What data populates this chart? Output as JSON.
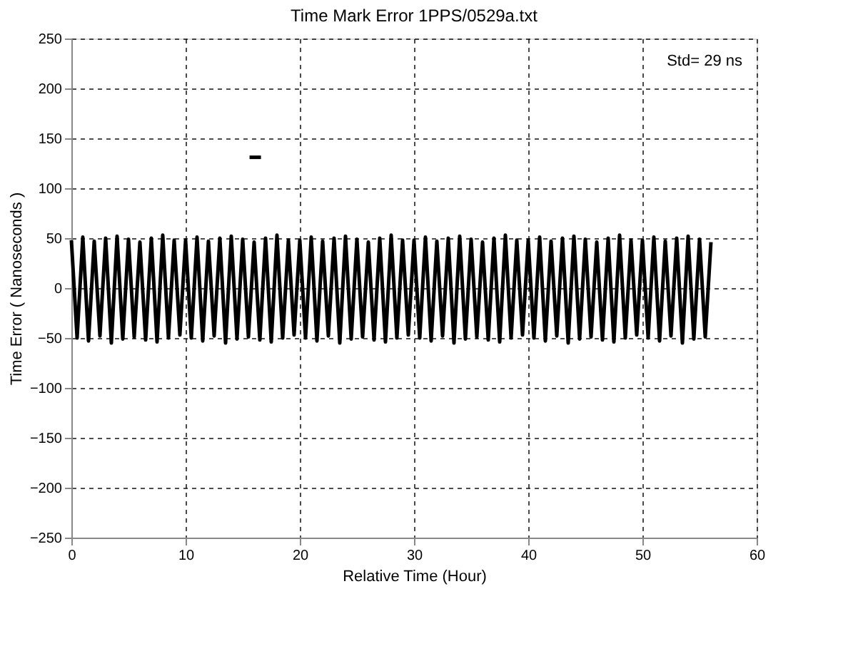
{
  "chart_data": {
    "type": "line",
    "title": "Time Mark Error 1PPS/0529a.txt",
    "xlabel": "Relative Time (Hour)",
    "ylabel": "Time Error ( Nanoseconds )",
    "xlim": [
      0,
      60
    ],
    "xticks": [
      0,
      10,
      20,
      30,
      40,
      50,
      60
    ],
    "ylim": [
      -250,
      250
    ],
    "yticks": [
      -250,
      -200,
      -150,
      -100,
      -50,
      0,
      50,
      100,
      150,
      200,
      250
    ],
    "grid": true,
    "line_style": "solid",
    "annotations": [
      "Std=   29 ns"
    ],
    "series": [
      {
        "color": "#000000",
        "x": [
          0,
          0.5,
          1,
          1.5,
          2,
          2.5,
          3,
          3.5,
          4,
          4.5,
          5,
          5.5,
          6,
          6.5,
          7,
          7.5,
          8,
          8.5,
          9,
          9.5,
          10,
          10.5,
          11,
          11.5,
          12,
          12.5,
          13,
          13.5,
          14,
          14.5,
          15,
          15.5,
          16,
          16.5,
          17,
          17.5,
          18,
          18.5,
          19,
          19.5,
          20,
          20.5,
          21,
          21.5,
          22,
          22.5,
          23,
          23.5,
          24,
          24.5,
          25,
          25.5,
          26,
          26.5,
          27,
          27.5,
          28,
          28.5,
          29,
          29.5,
          30,
          30.5,
          31,
          31.5,
          32,
          32.5,
          33,
          33.5,
          34,
          34.5,
          35,
          35.5,
          36,
          36.5,
          37,
          37.5,
          38,
          38.5,
          39,
          39.5,
          40,
          40.5,
          41,
          41.5,
          42,
          42.5,
          43,
          43.5,
          44,
          44.5,
          45,
          45.5,
          46,
          46.5,
          47,
          47.5,
          48,
          48.5,
          49,
          49.5,
          50,
          50.5,
          51,
          51.5,
          52,
          52.5,
          53,
          53.5,
          54,
          54.5,
          55,
          55.5,
          56
        ],
        "values": [
          48,
          -50,
          51,
          -53,
          47,
          -48,
          50,
          -55,
          52,
          -51,
          49,
          -49,
          46,
          -52,
          50,
          -54,
          53,
          -50,
          48,
          -47,
          48,
          -50,
          51,
          -53,
          47,
          -48,
          50,
          -55,
          52,
          -51,
          49,
          -49,
          46,
          -52,
          50,
          -54,
          53,
          -50,
          48,
          -47,
          48,
          -50,
          51,
          -53,
          47,
          -48,
          50,
          -55,
          52,
          -51,
          49,
          -49,
          46,
          -52,
          50,
          -54,
          53,
          -50,
          48,
          -47,
          48,
          -50,
          51,
          -53,
          47,
          -48,
          50,
          -55,
          52,
          -51,
          49,
          -49,
          46,
          -52,
          50,
          -54,
          53,
          -50,
          48,
          -47,
          48,
          -50,
          51,
          -53,
          47,
          -48,
          50,
          -55,
          52,
          -51,
          49,
          -49,
          46,
          -52,
          50,
          -54,
          53,
          -50,
          48,
          -47,
          48,
          -50,
          51,
          -53,
          47,
          -48,
          50,
          -55,
          52,
          -51,
          49,
          -49,
          46
        ]
      },
      {
        "color": "#000000",
        "x": [
          15.6,
          16.6
        ],
        "values": [
          131,
          131
        ]
      }
    ]
  }
}
